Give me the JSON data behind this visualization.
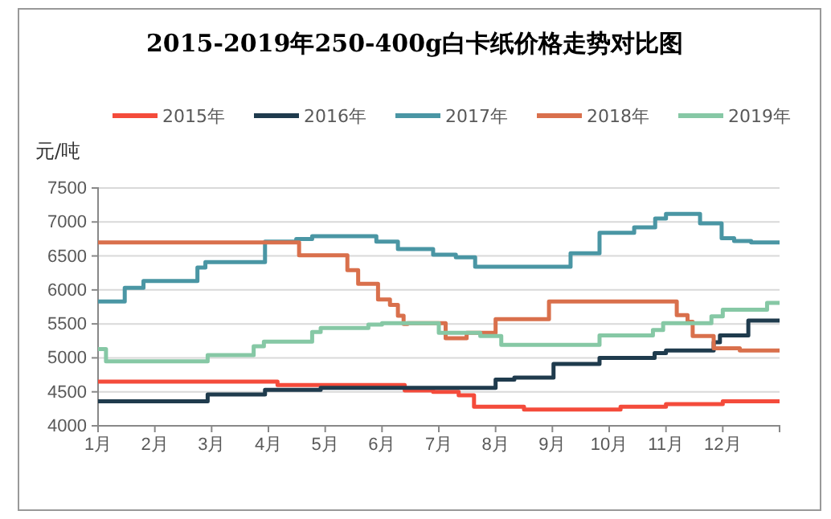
{
  "chart_data": {
    "type": "step",
    "title": "2015-2019年250-400g白卡纸价格走势对比图",
    "ylabel": "元/吨",
    "xlim": [
      1,
      13
    ],
    "xticks": [
      {
        "value": 1,
        "label": "1月"
      },
      {
        "value": 2,
        "label": "2月"
      },
      {
        "value": 3,
        "label": "3月"
      },
      {
        "value": 4,
        "label": "4月"
      },
      {
        "value": 5,
        "label": "5月"
      },
      {
        "value": 6,
        "label": "6月"
      },
      {
        "value": 7,
        "label": "7月"
      },
      {
        "value": 8,
        "label": "8月"
      },
      {
        "value": 9,
        "label": "9月"
      },
      {
        "value": 10,
        "label": "10月"
      },
      {
        "value": 11,
        "label": "11月"
      },
      {
        "value": 12,
        "label": "12月"
      },
      {
        "value": 13,
        "label": null
      }
    ],
    "ylim": [
      4000,
      7500
    ],
    "yticks": [
      4000,
      4500,
      5000,
      5500,
      6000,
      6500,
      7000,
      7500
    ],
    "grid": "y",
    "legend": "top",
    "line_style": "solid",
    "marker": "none",
    "series": [
      {
        "name": "2015年",
        "color": "#f44b3b",
        "x": [
          1,
          4.16,
          6.4,
          6.9,
          7.35,
          7.62,
          8.5,
          10.2,
          11.0,
          12.0,
          13
        ],
        "values": [
          4650,
          4600,
          4520,
          4500,
          4450,
          4280,
          4240,
          4280,
          4320,
          4360,
          4360
        ]
      },
      {
        "name": "2016年",
        "color": "#1f3b4d",
        "x": [
          1,
          2.93,
          3.94,
          4.92,
          8.0,
          8.33,
          9.02,
          9.83,
          10.8,
          11.0,
          11.84,
          11.95,
          12.45,
          13
        ],
        "values": [
          4360,
          4460,
          4530,
          4560,
          4680,
          4710,
          4910,
          5000,
          5070,
          5110,
          5230,
          5330,
          5550,
          5550
        ]
      },
      {
        "name": "2017年",
        "color": "#4a96a4",
        "x": [
          1,
          1.47,
          1.8,
          2.75,
          2.89,
          3.94,
          4.49,
          4.77,
          5.9,
          6.28,
          6.45,
          6.9,
          7.3,
          7.64,
          9.32,
          9.83,
          10.44,
          10.81,
          11.0,
          11.6,
          11.98,
          12.2,
          12.5,
          13
        ],
        "values": [
          5830,
          6030,
          6130,
          6330,
          6410,
          6710,
          6750,
          6790,
          6710,
          6600,
          6600,
          6520,
          6480,
          6340,
          6540,
          6840,
          6920,
          7050,
          7120,
          6980,
          6760,
          6720,
          6700,
          6700
        ]
      },
      {
        "name": "2018年",
        "color": "#d9704c",
        "x": [
          1,
          4.54,
          5.39,
          5.58,
          5.93,
          6.14,
          6.28,
          6.38,
          6.45,
          7.12,
          7.49,
          8.0,
          8.94,
          11.19,
          11.38,
          11.47,
          11.84,
          12.3,
          13
        ],
        "values": [
          6700,
          6510,
          6290,
          6090,
          5860,
          5780,
          5620,
          5500,
          5510,
          5290,
          5370,
          5570,
          5830,
          5630,
          5530,
          5320,
          5140,
          5110,
          5110
        ]
      },
      {
        "name": "2019年",
        "color": "#86c8a5",
        "x": [
          1,
          1.14,
          2.93,
          3.74,
          3.92,
          4.77,
          4.92,
          5.76,
          6.0,
          7.0,
          7.73,
          8.1,
          9.83,
          10.77,
          10.95,
          11.8,
          12.0,
          12.78,
          13
        ],
        "values": [
          5130,
          4950,
          5040,
          5170,
          5240,
          5380,
          5440,
          5490,
          5510,
          5370,
          5320,
          5190,
          5330,
          5410,
          5510,
          5610,
          5710,
          5810,
          5810
        ]
      }
    ]
  }
}
